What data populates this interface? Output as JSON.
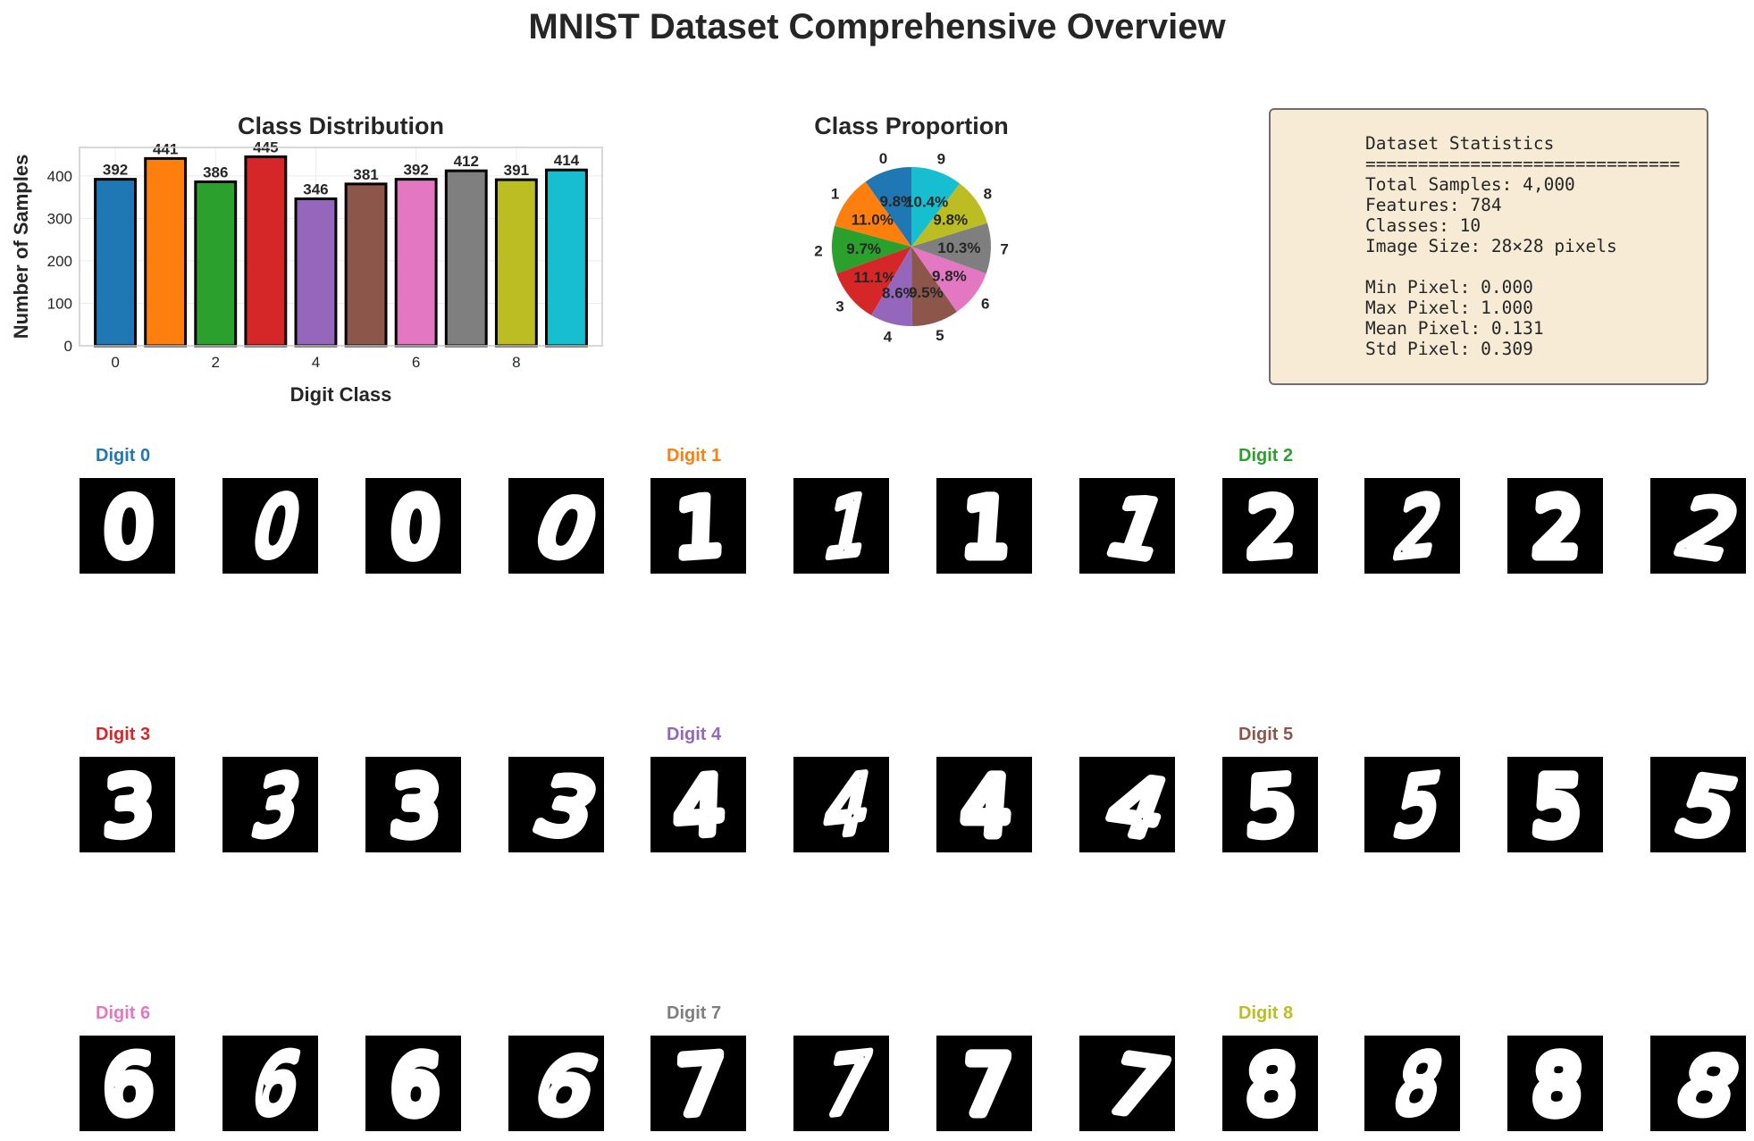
{
  "title": "MNIST Dataset Comprehensive Overview",
  "chart_data": [
    {
      "type": "bar",
      "title": "Class Distribution",
      "xlabel": "Digit Class",
      "ylabel": "Number of Samples",
      "categories": [
        "0",
        "1",
        "2",
        "3",
        "4",
        "5",
        "6",
        "7",
        "8",
        "9"
      ],
      "values": [
        392,
        441,
        386,
        445,
        346,
        381,
        392,
        412,
        391,
        414
      ],
      "colors": [
        "#1f77b4",
        "#ff7f0e",
        "#2ca02c",
        "#d62728",
        "#9467bd",
        "#8c564b",
        "#e377c2",
        "#7f7f7f",
        "#bcbd22",
        "#17becf"
      ],
      "xticks": [
        "0",
        "2",
        "4",
        "6",
        "8"
      ],
      "yticks": [
        "0",
        "100",
        "200",
        "300",
        "400"
      ],
      "ylim": [
        0,
        467
      ],
      "grid": true,
      "data_labels": [
        "392",
        "441",
        "386",
        "445",
        "346",
        "381",
        "392",
        "412",
        "391",
        "414"
      ]
    },
    {
      "type": "pie",
      "title": "Class Proportion",
      "labels": [
        "0",
        "1",
        "2",
        "3",
        "4",
        "5",
        "6",
        "7",
        "8",
        "9"
      ],
      "values": [
        9.8,
        11.0,
        9.7,
        11.1,
        8.6,
        9.5,
        9.8,
        10.3,
        9.8,
        10.4
      ],
      "pct_labels": [
        "9.8%",
        "11.0%",
        "9.7%",
        "11.1%",
        "8.6%",
        "9.5%",
        "9.8%",
        "10.3%",
        "9.8%",
        "10.4%"
      ],
      "colors": [
        "#1f77b4",
        "#ff7f0e",
        "#2ca02c",
        "#d62728",
        "#9467bd",
        "#8c564b",
        "#e377c2",
        "#7f7f7f",
        "#bcbd22",
        "#17becf"
      ],
      "start_angle": 90,
      "direction": "counterclockwise"
    }
  ],
  "stats": {
    "lines": [
      "Dataset Statistics",
      "==============================",
      "Total Samples: 4,000",
      "Features: 784",
      "Classes: 10",
      "Image Size: 28×28 pixels",
      "",
      "Min Pixel: 0.000",
      "Max Pixel: 1.000",
      "Mean Pixel: 0.131",
      "Std Pixel: 0.309"
    ]
  },
  "samples": [
    {
      "label": "Digit 0",
      "digit": "0",
      "color": "#1f77b4"
    },
    {
      "label": "Digit 1",
      "digit": "1",
      "color": "#ff7f0e"
    },
    {
      "label": "Digit 2",
      "digit": "2",
      "color": "#2ca02c"
    },
    {
      "label": "Digit 3",
      "digit": "3",
      "color": "#d62728"
    },
    {
      "label": "Digit 4",
      "digit": "4",
      "color": "#9467bd"
    },
    {
      "label": "Digit 5",
      "digit": "5",
      "color": "#8c564b"
    },
    {
      "label": "Digit 6",
      "digit": "6",
      "color": "#e377c2"
    },
    {
      "label": "Digit 7",
      "digit": "7",
      "color": "#7f7f7f"
    },
    {
      "label": "Digit 8",
      "digit": "8",
      "color": "#bcbd22"
    }
  ]
}
